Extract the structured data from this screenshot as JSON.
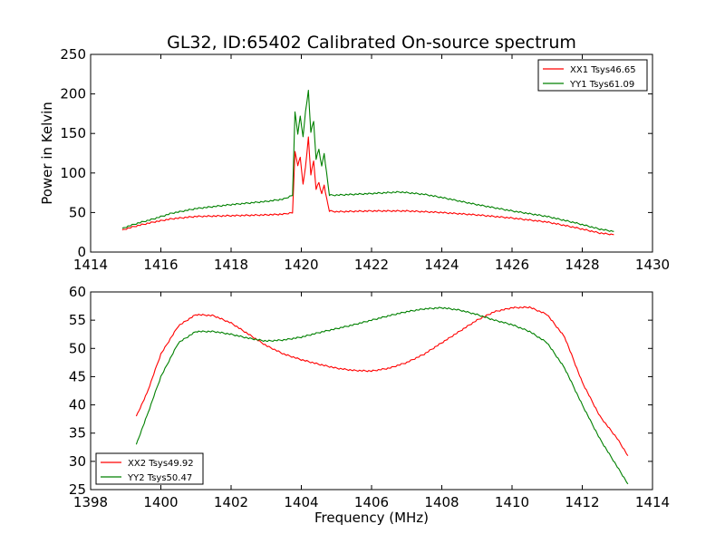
{
  "chart_data": [
    {
      "type": "line",
      "title": "GL32, ID:65402 Calibrated On-source spectrum",
      "xlabel": "",
      "ylabel": "Power in Kelvin",
      "xlim": [
        1414,
        1430
      ],
      "ylim": [
        0,
        250
      ],
      "xticks": [
        "1414",
        "1416",
        "1418",
        "1420",
        "1422",
        "1424",
        "1426",
        "1428",
        "1430"
      ],
      "yticks": [
        "0",
        "50",
        "100",
        "150",
        "200",
        "250"
      ],
      "legend": "top-right",
      "grid": false,
      "series": [
        {
          "name": "XX1 Tsys46.65",
          "color": "#ff0000",
          "x": [
            1414.9,
            1415.3,
            1415.8,
            1416.3,
            1417.0,
            1418.0,
            1419.0,
            1419.5,
            1419.75,
            1419.82,
            1419.9,
            1419.97,
            1420.05,
            1420.12,
            1420.2,
            1420.27,
            1420.35,
            1420.42,
            1420.5,
            1420.58,
            1420.65,
            1420.72,
            1420.8,
            1421.0,
            1422.0,
            1423.0,
            1424.0,
            1425.0,
            1426.0,
            1427.0,
            1427.8,
            1428.5,
            1428.9
          ],
          "y": [
            28,
            33,
            38,
            42,
            45,
            46,
            47,
            48,
            50,
            127,
            110,
            120,
            85,
            108,
            145,
            98,
            115,
            80,
            88,
            73,
            85,
            68,
            52,
            51,
            52,
            52,
            50,
            47,
            43,
            38,
            31,
            24,
            22
          ]
        },
        {
          "name": "YY1 Tsys61.09",
          "color": "#008000",
          "x": [
            1414.9,
            1415.3,
            1415.8,
            1416.3,
            1417.0,
            1418.0,
            1419.0,
            1419.5,
            1419.75,
            1419.82,
            1419.9,
            1419.97,
            1420.05,
            1420.12,
            1420.2,
            1420.27,
            1420.35,
            1420.42,
            1420.5,
            1420.58,
            1420.65,
            1420.72,
            1420.8,
            1421.0,
            1422.0,
            1422.8,
            1423.5,
            1424.0,
            1425.0,
            1426.0,
            1427.0,
            1427.8,
            1428.5,
            1428.9
          ],
          "y": [
            30,
            36,
            42,
            49,
            55,
            60,
            64,
            67,
            72,
            177,
            150,
            172,
            145,
            178,
            204,
            152,
            165,
            118,
            130,
            108,
            125,
            100,
            72,
            72,
            74,
            76,
            73,
            69,
            60,
            52,
            45,
            37,
            29,
            26
          ]
        }
      ]
    },
    {
      "type": "line",
      "title": "",
      "xlabel": "Frequency (MHz)",
      "ylabel": "",
      "xlim": [
        1398,
        1414
      ],
      "ylim": [
        25,
        60
      ],
      "xticks": [
        "1398",
        "1400",
        "1402",
        "1404",
        "1406",
        "1408",
        "1410",
        "1412",
        "1414"
      ],
      "yticks": [
        "25",
        "30",
        "35",
        "40",
        "45",
        "50",
        "55",
        "60"
      ],
      "legend": "bottom-left",
      "grid": false,
      "series": [
        {
          "name": "XX2 Tsys49.92",
          "color": "#ff0000",
          "x": [
            1399.3,
            1399.6,
            1400.0,
            1400.5,
            1401.0,
            1401.5,
            1402.0,
            1402.5,
            1403.0,
            1403.5,
            1404.0,
            1404.5,
            1405.0,
            1405.5,
            1406.0,
            1406.5,
            1407.0,
            1407.5,
            1408.0,
            1408.5,
            1409.0,
            1409.5,
            1410.0,
            1410.5,
            1411.0,
            1411.5,
            1412.0,
            1412.5,
            1413.0,
            1413.3
          ],
          "y": [
            38,
            42,
            49,
            54,
            56,
            55.8,
            54.5,
            52.5,
            50.5,
            49,
            48,
            47.2,
            46.5,
            46.1,
            46,
            46.5,
            47.5,
            49,
            51,
            53,
            55,
            56.5,
            57.2,
            57.3,
            56,
            52,
            44,
            38,
            34,
            31
          ]
        },
        {
          "name": "YY2 Tsys50.47",
          "color": "#008000",
          "x": [
            1399.3,
            1399.6,
            1400.0,
            1400.5,
            1401.0,
            1401.5,
            1402.0,
            1402.5,
            1403.0,
            1403.5,
            1404.0,
            1404.5,
            1405.0,
            1405.5,
            1406.0,
            1406.5,
            1407.0,
            1407.5,
            1408.0,
            1408.5,
            1409.0,
            1409.5,
            1410.0,
            1410.5,
            1411.0,
            1411.5,
            1412.0,
            1412.5,
            1413.0,
            1413.3
          ],
          "y": [
            33,
            38,
            45,
            51,
            53,
            53,
            52.5,
            51.8,
            51.3,
            51.5,
            52,
            52.8,
            53.5,
            54.2,
            55,
            55.8,
            56.5,
            57,
            57.2,
            56.8,
            56,
            55,
            54.2,
            53,
            51,
            46.5,
            40,
            34,
            29,
            26
          ]
        }
      ]
    }
  ]
}
